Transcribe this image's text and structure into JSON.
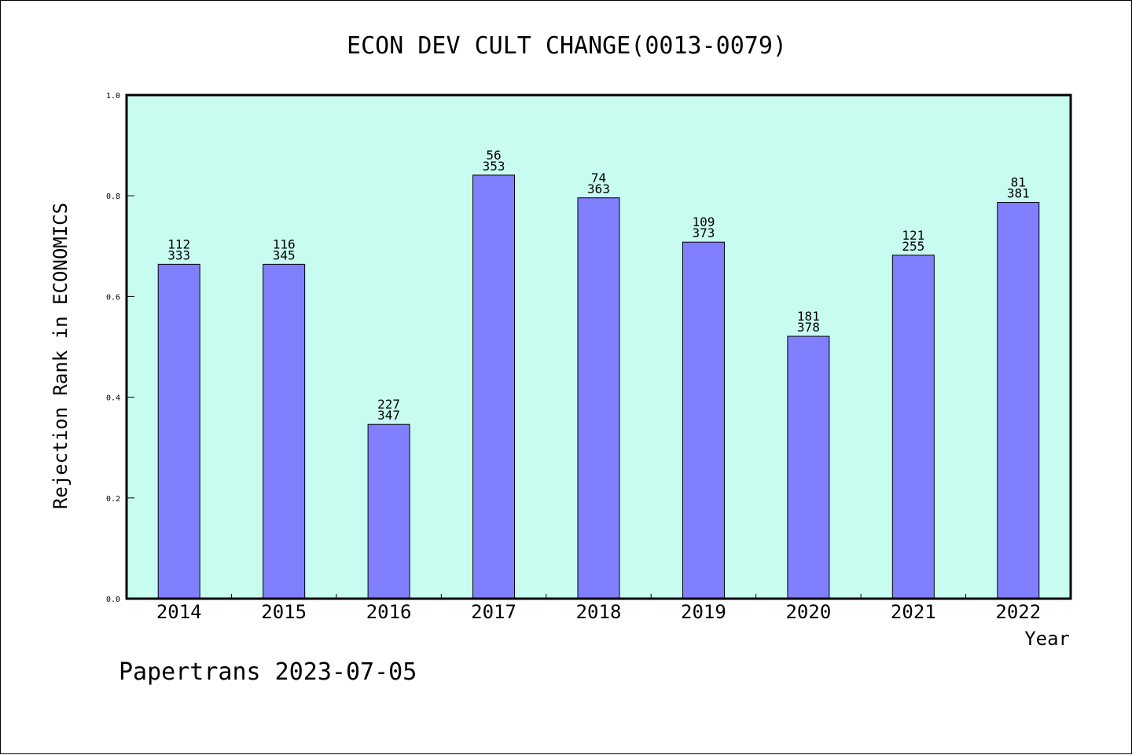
{
  "chart_data": {
    "type": "bar",
    "title": "ECON DEV CULT CHANGE(0013-0079)",
    "xlabel": "Year",
    "ylabel": "Rejection Rank in ECONOMICS",
    "ylim": [
      0,
      1.0
    ],
    "yticks": [
      "0.0",
      "0.2",
      "0.4",
      "0.6",
      "0.8",
      "1.0"
    ],
    "categories": [
      "2014",
      "2015",
      "2016",
      "2017",
      "2018",
      "2019",
      "2020",
      "2021",
      "2022"
    ],
    "values": [
      0.664,
      0.664,
      0.346,
      0.841,
      0.796,
      0.708,
      0.521,
      0.682,
      0.787
    ],
    "labels_top": [
      "112",
      "116",
      "227",
      "56",
      "74",
      "109",
      "181",
      "121",
      "81"
    ],
    "labels_bottom": [
      "333",
      "345",
      "347",
      "353",
      "363",
      "373",
      "378",
      "255",
      "381"
    ],
    "grid": false,
    "colors": {
      "plot_bg": "#c8fcf0",
      "bar": "#8080ff"
    }
  },
  "footer": "Papertrans 2023-07-05"
}
